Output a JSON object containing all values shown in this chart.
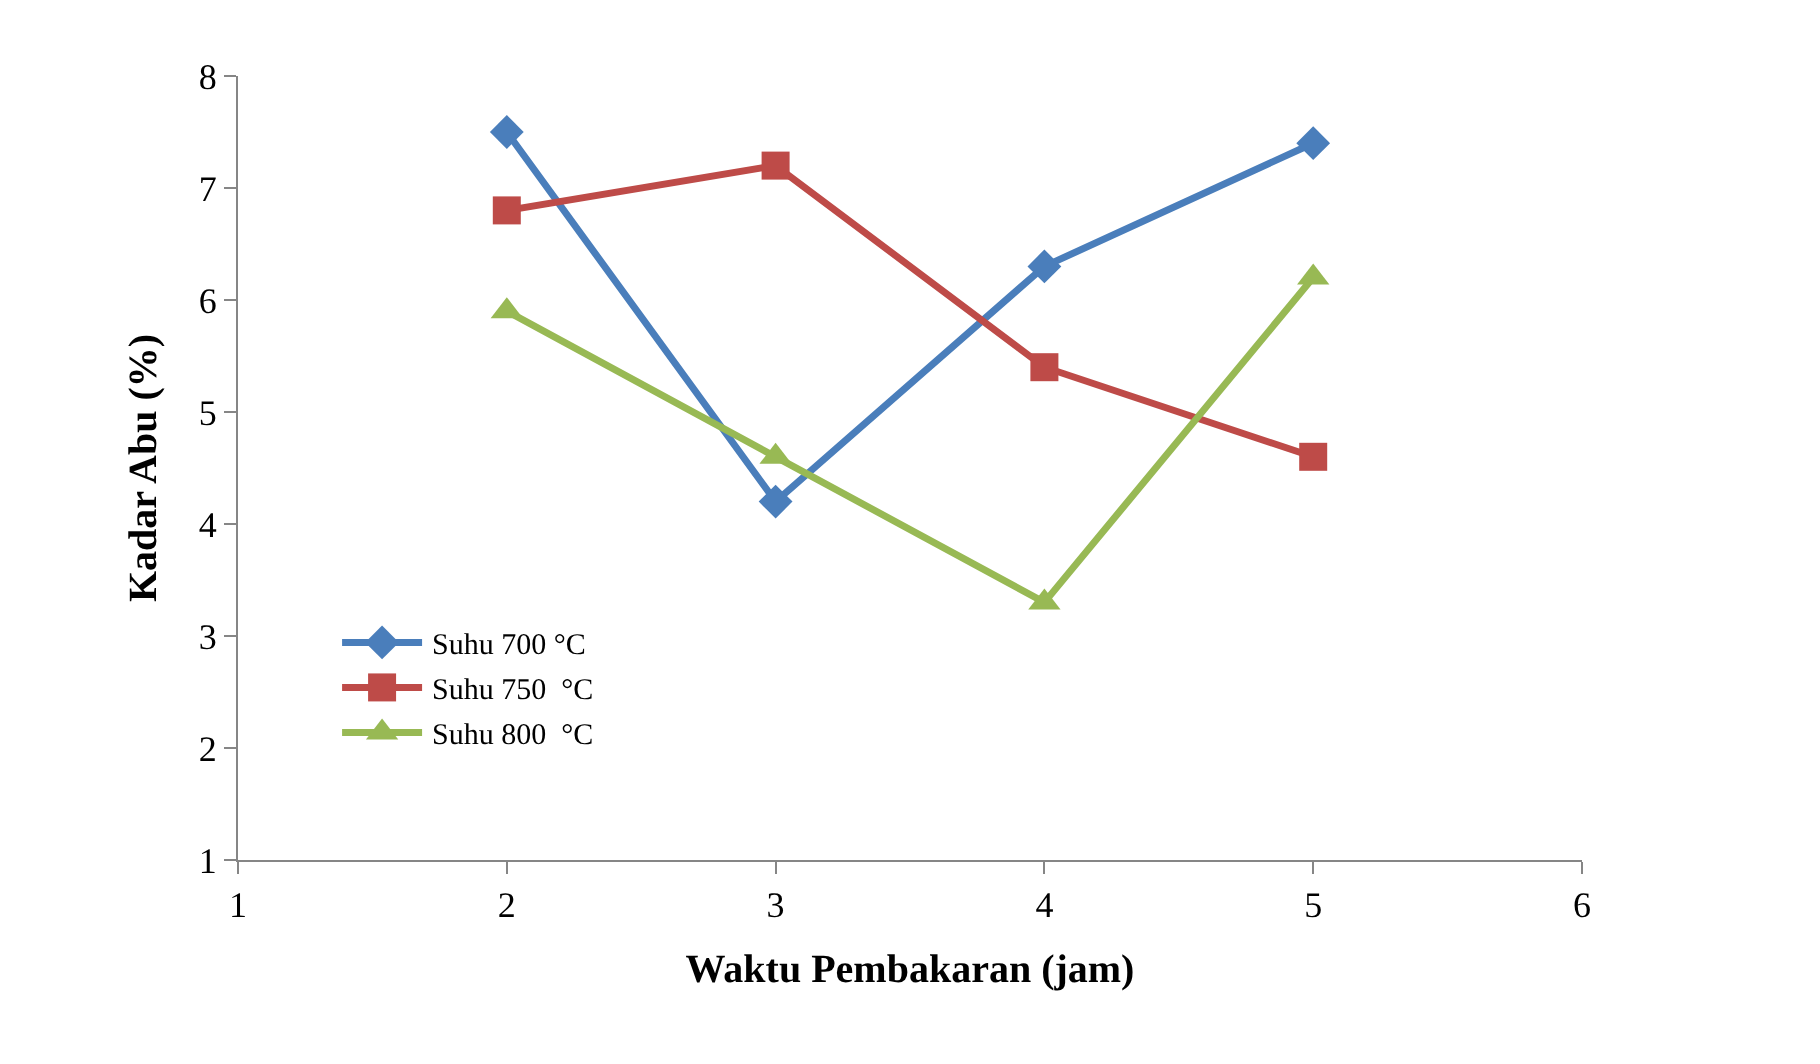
{
  "chart_data": {
    "type": "line",
    "xlabel": "Waktu Pembakaran (jam)",
    "ylabel": "Kadar Abu (%)",
    "x": [
      2,
      3,
      4,
      5
    ],
    "series": [
      {
        "name": "Suhu 700 °C",
        "color": "#4a7ebb",
        "marker": "diamond",
        "values": [
          7.5,
          4.2,
          6.3,
          7.4
        ]
      },
      {
        "name": "Suhu 750  °C",
        "color": "#be4b48",
        "marker": "square",
        "values": [
          6.8,
          7.2,
          5.4,
          4.6
        ]
      },
      {
        "name": "Suhu 800  °C",
        "color": "#98b954",
        "marker": "triangle",
        "values": [
          5.9,
          4.6,
          3.3,
          6.2
        ]
      }
    ],
    "xlim": [
      1,
      6
    ],
    "xticks": [
      1,
      2,
      3,
      4,
      5,
      6
    ],
    "ylim": [
      1,
      8
    ],
    "yticks": [
      1,
      2,
      3,
      4,
      5,
      6,
      7,
      8
    ],
    "legend": "bottom left",
    "line_style": "solid"
  }
}
